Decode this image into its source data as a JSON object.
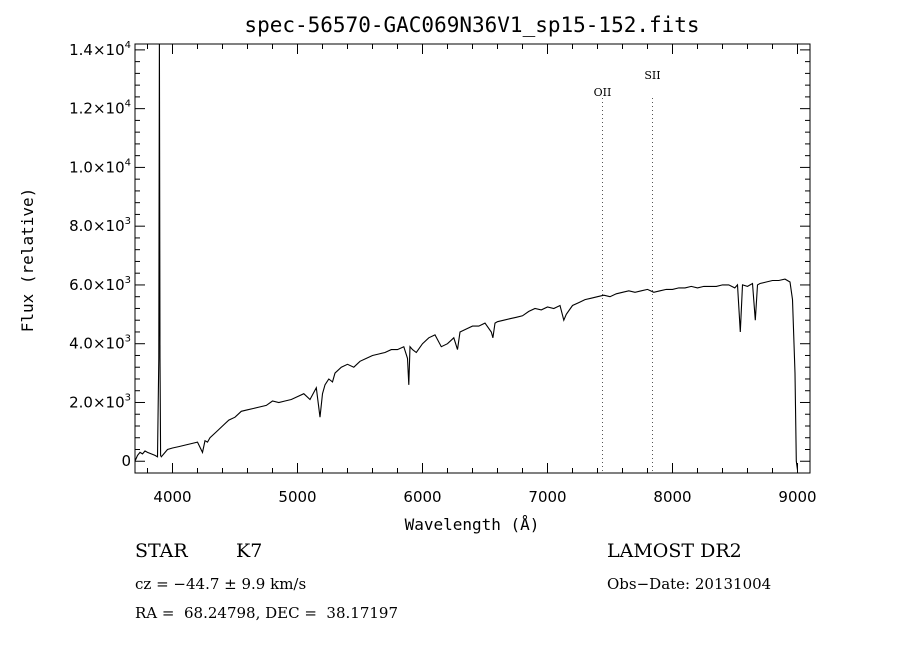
{
  "chart_data": {
    "type": "line",
    "title": "spec-56570-GAC069N36V1_sp15-152.fits",
    "xlabel": "Wavelength (Å)",
    "ylabel": "Flux (relative)",
    "xlim": [
      3700,
      9100
    ],
    "ylim": [
      -400,
      14200
    ],
    "x_ticks": [
      4000,
      5000,
      6000,
      7000,
      8000,
      9000
    ],
    "y_ticks": [
      {
        "value": 0,
        "mantissa": "0",
        "exp": ""
      },
      {
        "value": 2000,
        "mantissa": "2.0×10",
        "exp": "3"
      },
      {
        "value": 4000,
        "mantissa": "4.0×10",
        "exp": "3"
      },
      {
        "value": 6000,
        "mantissa": "6.0×10",
        "exp": "3"
      },
      {
        "value": 8000,
        "mantissa": "8.0×10",
        "exp": "3"
      },
      {
        "value": 10000,
        "mantissa": "1.0×10",
        "exp": "4"
      },
      {
        "value": 12000,
        "mantissa": "1.2×10",
        "exp": "4"
      },
      {
        "value": 14000,
        "mantissa": "1.4×10",
        "exp": "4"
      }
    ],
    "series": [
      {
        "x": [
          3700,
          3720,
          3740,
          3760,
          3780,
          3800,
          3830,
          3860,
          3880,
          3890,
          3895,
          3900,
          3905,
          3910,
          3930,
          3960,
          4000,
          4050,
          4100,
          4150,
          4200,
          4240,
          4260,
          4280,
          4300,
          4350,
          4400,
          4450,
          4500,
          4550,
          4600,
          4650,
          4700,
          4750,
          4800,
          4850,
          4900,
          4950,
          5000,
          5050,
          5100,
          5150,
          5180,
          5200,
          5220,
          5250,
          5280,
          5300,
          5350,
          5400,
          5450,
          5500,
          5550,
          5600,
          5650,
          5700,
          5750,
          5800,
          5850,
          5880,
          5890,
          5900,
          5920,
          5950,
          6000,
          6050,
          6100,
          6150,
          6200,
          6250,
          6280,
          6300,
          6350,
          6400,
          6450,
          6500,
          6550,
          6563,
          6580,
          6600,
          6650,
          6700,
          6750,
          6800,
          6850,
          6900,
          6950,
          7000,
          7050,
          7100,
          7130,
          7150,
          7200,
          7250,
          7300,
          7350,
          7400,
          7450,
          7500,
          7550,
          7600,
          7650,
          7700,
          7750,
          7800,
          7850,
          7900,
          7950,
          8000,
          8050,
          8100,
          8150,
          8200,
          8250,
          8300,
          8350,
          8400,
          8450,
          8498,
          8520,
          8542,
          8560,
          8600,
          8640,
          8662,
          8680,
          8700,
          8750,
          8800,
          8850,
          8900,
          8940,
          8960,
          8980,
          8990,
          9000
        ],
        "y": [
          0,
          200,
          300,
          250,
          350,
          300,
          250,
          200,
          150,
          3500,
          14500,
          3500,
          200,
          150,
          250,
          400,
          450,
          500,
          550,
          600,
          650,
          300,
          700,
          650,
          800,
          1000,
          1200,
          1400,
          1500,
          1700,
          1750,
          1800,
          1850,
          1900,
          2050,
          2000,
          2050,
          2100,
          2200,
          2300,
          2100,
          2500,
          1500,
          2300,
          2600,
          2800,
          2700,
          3000,
          3200,
          3300,
          3200,
          3400,
          3500,
          3600,
          3650,
          3700,
          3800,
          3800,
          3900,
          3500,
          2600,
          3900,
          3800,
          3700,
          4000,
          4200,
          4300,
          3900,
          4000,
          4200,
          3800,
          4400,
          4500,
          4600,
          4600,
          4700,
          4400,
          4200,
          4700,
          4750,
          4800,
          4850,
          4900,
          4950,
          5100,
          5200,
          5150,
          5250,
          5200,
          5300,
          4800,
          5000,
          5300,
          5400,
          5500,
          5550,
          5600,
          5650,
          5600,
          5700,
          5750,
          5800,
          5750,
          5800,
          5850,
          5750,
          5800,
          5850,
          5850,
          5900,
          5900,
          5950,
          5900,
          5950,
          5950,
          5950,
          6000,
          6000,
          5900,
          6000,
          4400,
          6000,
          5950,
          6050,
          4800,
          6000,
          6050,
          6100,
          6150,
          6150,
          6200,
          6100,
          5500,
          3000,
          0,
          -300
        ]
      }
    ],
    "annotations": [
      {
        "label": "OII",
        "x": 7440
      },
      {
        "label": "SII",
        "x": 7840
      }
    ]
  },
  "info": {
    "object_class": "STAR",
    "subclass": "K7",
    "redshift": "cz = −44.7 ± 9.9 km/s",
    "coords": "RA =  68.24798, DEC =  38.17197",
    "survey": "LAMOST DR2",
    "obs_date": "Obs−Date: 20131004"
  }
}
